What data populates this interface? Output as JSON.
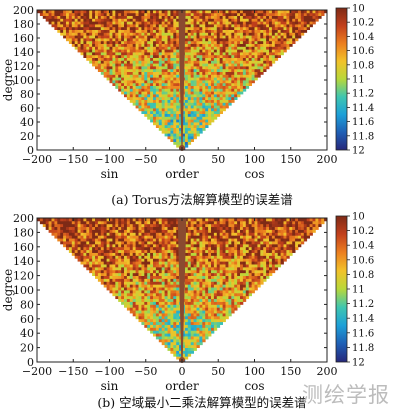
{
  "chart_data": [
    {
      "type": "heatmap",
      "caption": "(a) Torus方法解算模型的误差谱",
      "xlabel_parts": [
        "sin",
        "order",
        "cos"
      ],
      "ylabel": "degree",
      "xlim": [
        -200,
        200
      ],
      "ylim": [
        0,
        200
      ],
      "x_ticks": [
        -200,
        -150,
        -100,
        -50,
        0,
        50,
        100,
        150,
        200
      ],
      "y_ticks": [
        0,
        20,
        40,
        60,
        80,
        100,
        120,
        140,
        160,
        180,
        200
      ],
      "domain": "triangle |order| <= degree",
      "colorbar": {
        "min": -12,
        "max": -10,
        "ticks": [
          -10,
          -10.2,
          -10.4,
          -10.6,
          -10.8,
          -11,
          -11.2,
          -11.4,
          -11.6,
          -11.8,
          -12
        ],
        "tick_labels": [
          "10",
          "10.2",
          "10.4",
          "10.6",
          "10.8",
          "11",
          "11.2",
          "11.4",
          "11.6",
          "11.8",
          "12"
        ],
        "colors": [
          "#26277a",
          "#1f5fb5",
          "#1da0d8",
          "#3fc6b0",
          "#b8d83a",
          "#f2c22a",
          "#ec7f1f",
          "#c2401c",
          "#7e2a16"
        ]
      },
      "near_zonal_band": {
        "half_width_order": 5,
        "color": "#8a4a30",
        "value": -10
      },
      "error_gradient": {
        "top_degree_value": -10.3,
        "bottom_degree_value": -11.3,
        "noise": 0.55
      }
    },
    {
      "type": "heatmap",
      "caption": "(b) 空域最小二乘法解算模型的误差谱",
      "xlabel_parts": [
        "sin",
        "order",
        "cos"
      ],
      "ylabel": "degree",
      "xlim": [
        -200,
        200
      ],
      "ylim": [
        0,
        200
      ],
      "x_ticks": [
        -200,
        -150,
        -100,
        -50,
        0,
        50,
        100,
        150,
        200
      ],
      "y_ticks": [
        0,
        20,
        40,
        60,
        80,
        100,
        120,
        140,
        160,
        180,
        200
      ],
      "domain": "triangle |order| <= degree",
      "colorbar": {
        "min": -12,
        "max": -10,
        "ticks": [
          -10,
          -10.2,
          -10.4,
          -10.6,
          -10.8,
          -11,
          -11.2,
          -11.4,
          -11.6,
          -11.8,
          -12
        ],
        "tick_labels": [
          "10",
          "10.2",
          "10.4",
          "10.6",
          "10.8",
          "11",
          "11.2",
          "11.4",
          "11.6",
          "11.8",
          "12"
        ],
        "colors": [
          "#26277a",
          "#1f5fb5",
          "#1da0d8",
          "#3fc6b0",
          "#b8d83a",
          "#f2c22a",
          "#ec7f1f",
          "#c2401c",
          "#7e2a16"
        ]
      },
      "near_zonal_band": {
        "half_width_order": 6,
        "color": "#8a4a30",
        "value": -10
      },
      "error_gradient": {
        "top_degree_value": -10.25,
        "bottom_degree_value": -11.2,
        "noise": 0.55
      }
    }
  ],
  "watermark": "测绘学报"
}
